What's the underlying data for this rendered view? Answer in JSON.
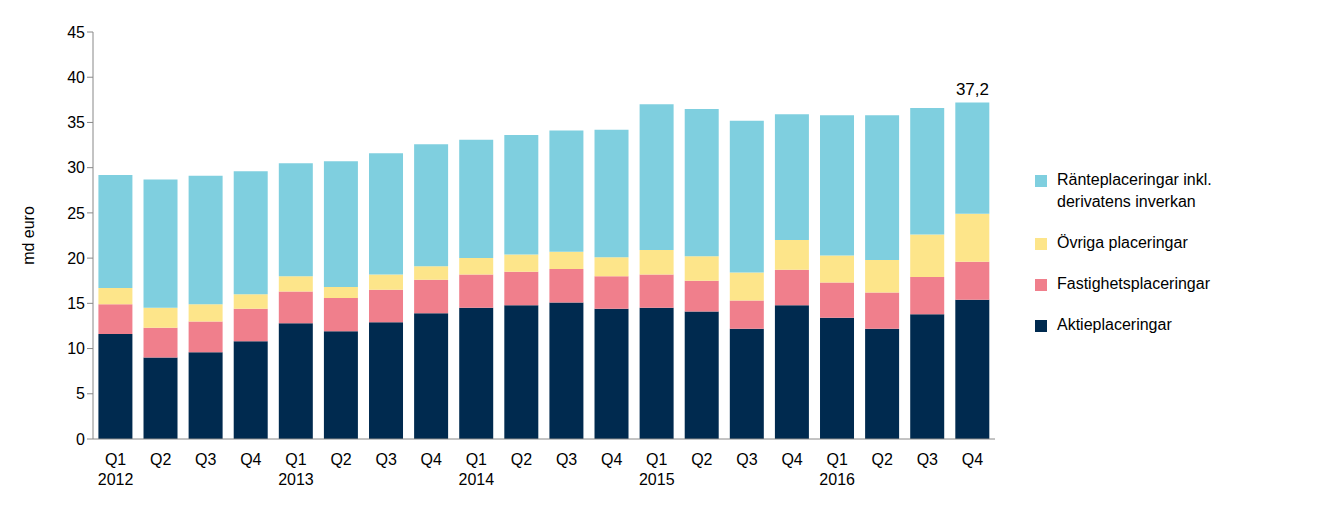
{
  "chart_data": {
    "type": "bar",
    "stacked": true,
    "grid": false,
    "legend": "right",
    "y_label": "md euro",
    "categories": [
      "Q1 2012",
      "Q2",
      "Q3",
      "Q4",
      "Q1 2013",
      "Q2",
      "Q3",
      "Q4",
      "Q1 2014",
      "Q2",
      "Q3",
      "Q4",
      "Q1 2015",
      "Q2",
      "Q3",
      "Q4",
      "Q1 2016",
      "Q2",
      "Q3",
      "Q4"
    ],
    "ylim": [
      0,
      45
    ],
    "yticks": [
      0,
      5,
      10,
      15,
      20,
      25,
      30,
      35,
      40,
      45
    ],
    "series": [
      {
        "name": "Aktieplaceringar",
        "color": "#002a4f",
        "values": [
          11.6,
          9.0,
          9.6,
          10.8,
          12.8,
          11.9,
          12.9,
          13.9,
          14.5,
          14.8,
          15.1,
          14.4,
          14.5,
          14.1,
          12.2,
          14.8,
          13.4,
          12.2,
          13.8,
          15.4
        ]
      },
      {
        "name": "Fastighetsplaceringar",
        "color": "#f07f8c",
        "values": [
          3.3,
          3.3,
          3.4,
          3.6,
          3.5,
          3.7,
          3.6,
          3.7,
          3.7,
          3.7,
          3.7,
          3.6,
          3.7,
          3.4,
          3.1,
          3.9,
          3.9,
          4.0,
          4.1,
          4.2
        ]
      },
      {
        "name": "Övriga placeringar",
        "color": "#fde58a",
        "values": [
          1.8,
          2.2,
          1.9,
          1.6,
          1.7,
          1.2,
          1.7,
          1.5,
          1.8,
          1.9,
          1.9,
          2.1,
          2.7,
          2.7,
          3.1,
          3.3,
          3.0,
          3.6,
          4.7,
          5.3
        ]
      },
      {
        "name": "Ränteplaceringar inkl. derivatens inverkan",
        "color": "#7fcfdf",
        "values": [
          12.5,
          14.2,
          14.2,
          13.6,
          12.5,
          13.9,
          13.4,
          13.5,
          13.1,
          13.2,
          13.4,
          14.1,
          16.1,
          16.3,
          16.8,
          13.9,
          15.5,
          16.0,
          14.0,
          12.3
        ]
      }
    ],
    "annotations": [
      {
        "text": "37,2",
        "x": 19,
        "y": 37.2
      }
    ]
  }
}
